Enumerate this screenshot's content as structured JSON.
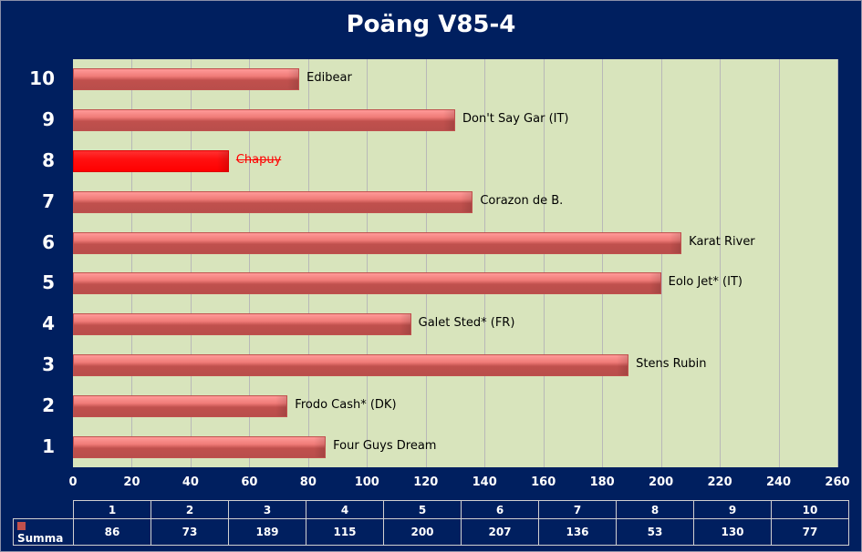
{
  "chart_data": {
    "type": "bar",
    "orientation": "horizontal",
    "title": "Poäng  V85-4",
    "categories": [
      "1",
      "2",
      "3",
      "4",
      "5",
      "6",
      "7",
      "8",
      "9",
      "10"
    ],
    "series": [
      {
        "name": "Summa",
        "values": [
          86,
          73,
          189,
          115,
          200,
          207,
          136,
          53,
          130,
          77
        ]
      }
    ],
    "bar_labels": [
      "Four Guys Dream",
      "Frodo  Cash* (DK)",
      "Stens Rubin",
      "Galet Sted* (FR)",
      "Eolo Jet* (IT)",
      "Karat River",
      "Corazon de B.",
      "Chapuy",
      "Don't Say Gar (IT)",
      "Edibear"
    ],
    "highlighted": [
      "8"
    ],
    "xlim": [
      0,
      260
    ],
    "xticks": [
      0,
      20,
      40,
      60,
      80,
      100,
      120,
      140,
      160,
      180,
      200,
      220,
      240,
      260
    ],
    "grid": true,
    "data_table": true,
    "colors": {
      "bar": "#c0504d",
      "highlight": "#ff0000",
      "plot_bg": "#d8e4bc",
      "background": "#001f5f"
    }
  }
}
